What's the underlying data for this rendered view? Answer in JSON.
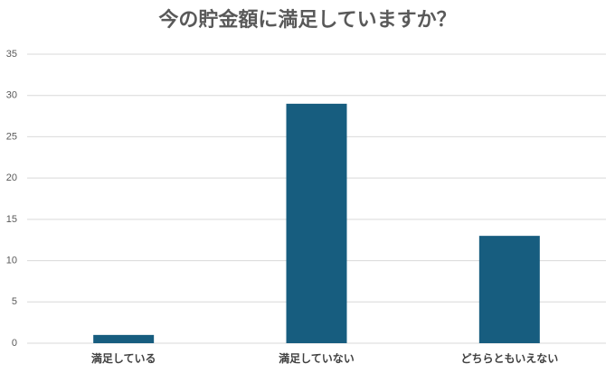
{
  "chart_data": {
    "type": "bar",
    "title": "今の貯金額に満足していますか？",
    "categories": [
      "満足している",
      "満足していない",
      "どちらともいえない"
    ],
    "values": [
      1,
      29,
      13
    ],
    "color": "#175d7f",
    "ylim": [
      0,
      35
    ],
    "yticks": [
      0,
      5,
      10,
      15,
      20,
      25,
      30,
      35
    ],
    "grid": true
  }
}
